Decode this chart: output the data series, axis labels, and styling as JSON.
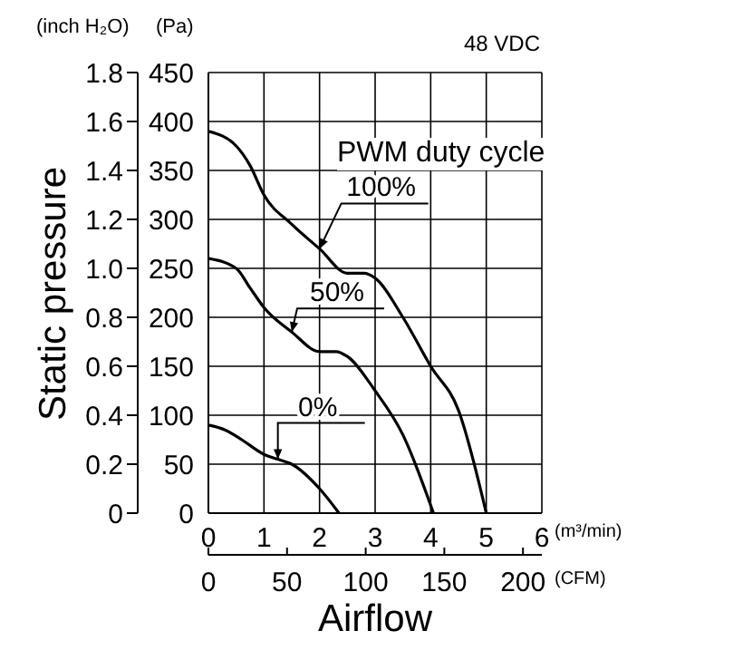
{
  "chart_data": {
    "type": "line",
    "ylabel": "Static pressure",
    "xlabel": "Airflow",
    "y2label": "(Pa)",
    "x2label": "(CFM)",
    "annotations": [
      "48 VDC",
      "(inch H₂O)",
      "(m³/min)",
      "PWM duty cycle"
    ],
    "xlim": [
      0,
      6
    ],
    "xticks": [
      0,
      1,
      2,
      3,
      4,
      5,
      6
    ],
    "ylim": [
      0,
      1.8
    ],
    "yticks": [
      0,
      0.2,
      0.4,
      0.6,
      0.8,
      {
        "value": 1,
        "label": "1.0"
      },
      1.2,
      1.4,
      1.6,
      1.8
    ],
    "y2lim": [
      0,
      450
    ],
    "y2ticks": [
      0,
      50,
      100,
      150,
      200,
      250,
      300,
      350,
      400,
      450
    ],
    "x2lim": [
      0,
      212
    ],
    "x2ticks": [
      0,
      50,
      100,
      150,
      200
    ],
    "grid": true,
    "series": [
      {
        "name": "100%",
        "color": "#000000",
        "axis": "y2",
        "x": [
          0,
          0.5,
          0.75,
          1,
          1.5,
          2,
          2.5,
          2.8,
          3,
          3.5,
          4,
          4.5,
          5
        ],
        "values": [
          390,
          375,
          355,
          325,
          295,
          270,
          245,
          245,
          240,
          200,
          150,
          105,
          0
        ]
      },
      {
        "name": "50%",
        "color": "#000000",
        "axis": "y2",
        "x": [
          0,
          0.5,
          0.75,
          1,
          1.5,
          2,
          2.3,
          2.5,
          3,
          3.5,
          4.05
        ],
        "values": [
          260,
          250,
          230,
          210,
          185,
          165,
          165,
          160,
          125,
          80,
          0
        ]
      },
      {
        "name": "0%",
        "color": "#000000",
        "axis": "y2",
        "x": [
          0,
          0.3,
          0.6,
          1,
          1.25,
          1.5,
          2,
          2.35
        ],
        "values": [
          90,
          85,
          75,
          60,
          55,
          50,
          25,
          0
        ]
      }
    ]
  }
}
